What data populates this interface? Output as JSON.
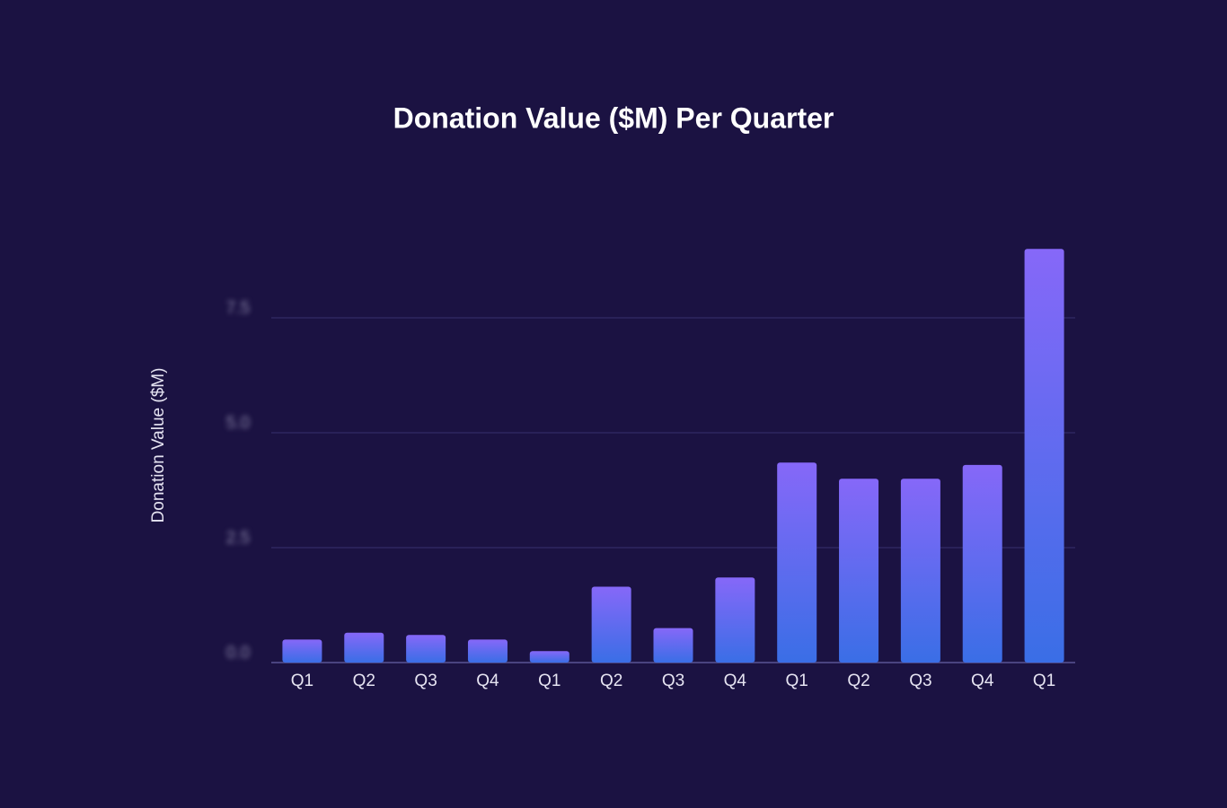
{
  "chart_data": {
    "type": "bar",
    "title": "Donation Value ($M) Per Quarter",
    "y_label": "Donation Value ($M)",
    "categories": [
      "Q1",
      "Q2",
      "Q3",
      "Q4",
      "Q1",
      "Q2",
      "Q3",
      "Q4",
      "Q1",
      "Q2",
      "Q3",
      "Q4",
      "Q1"
    ],
    "values": [
      0.5,
      0.65,
      0.6,
      0.5,
      0.25,
      1.65,
      0.75,
      1.85,
      4.35,
      4.0,
      4.0,
      4.3,
      9.0
    ],
    "gradient": [
      "#8668f8",
      "#3a6ee6"
    ],
    "ylim": [
      0,
      9.5
    ],
    "yticks": [
      {
        "value": 0,
        "label": "0.0"
      },
      2.5,
      {
        "value": 5,
        "label": "5.0"
      },
      7.5
    ],
    "grid": true
  }
}
